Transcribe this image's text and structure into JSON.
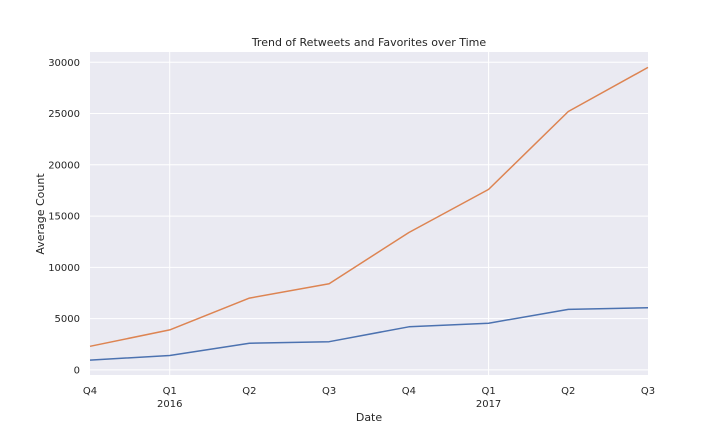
{
  "chart_data": {
    "type": "line",
    "title": "Trend of Retweets and Favorites over Time",
    "xlabel": "Date",
    "ylabel": "Average Count",
    "x": [
      "2015-Q4",
      "2016-Q1",
      "2016-Q2",
      "2016-Q3",
      "2016-Q4",
      "2017-Q1",
      "2017-Q2",
      "2017-Q3"
    ],
    "x_tick_labels": [
      {
        "quarter": "Q4",
        "year": ""
      },
      {
        "quarter": "Q1",
        "year": "2016"
      },
      {
        "quarter": "Q2",
        "year": ""
      },
      {
        "quarter": "Q3",
        "year": ""
      },
      {
        "quarter": "Q4",
        "year": ""
      },
      {
        "quarter": "Q1",
        "year": "2017"
      },
      {
        "quarter": "Q2",
        "year": ""
      },
      {
        "quarter": "Q3",
        "year": ""
      }
    ],
    "y_ticks": [
      0,
      5000,
      10000,
      15000,
      20000,
      25000,
      30000
    ],
    "y_tick_labels": [
      "0",
      "5000",
      "10000",
      "15000",
      "20000",
      "25000",
      "30000"
    ],
    "ylim": [
      -500,
      31000
    ],
    "series": [
      {
        "color": "#4c72b0",
        "values": [
          950,
          1400,
          2600,
          2750,
          4200,
          4550,
          5900,
          6050
        ]
      },
      {
        "color": "#dd8452",
        "values": [
          2300,
          3900,
          7000,
          8400,
          13400,
          17600,
          25200,
          29500
        ]
      }
    ],
    "grid": true,
    "legend": "none",
    "background_color": "#eaeaf2",
    "grid_color": "#ffffff"
  }
}
